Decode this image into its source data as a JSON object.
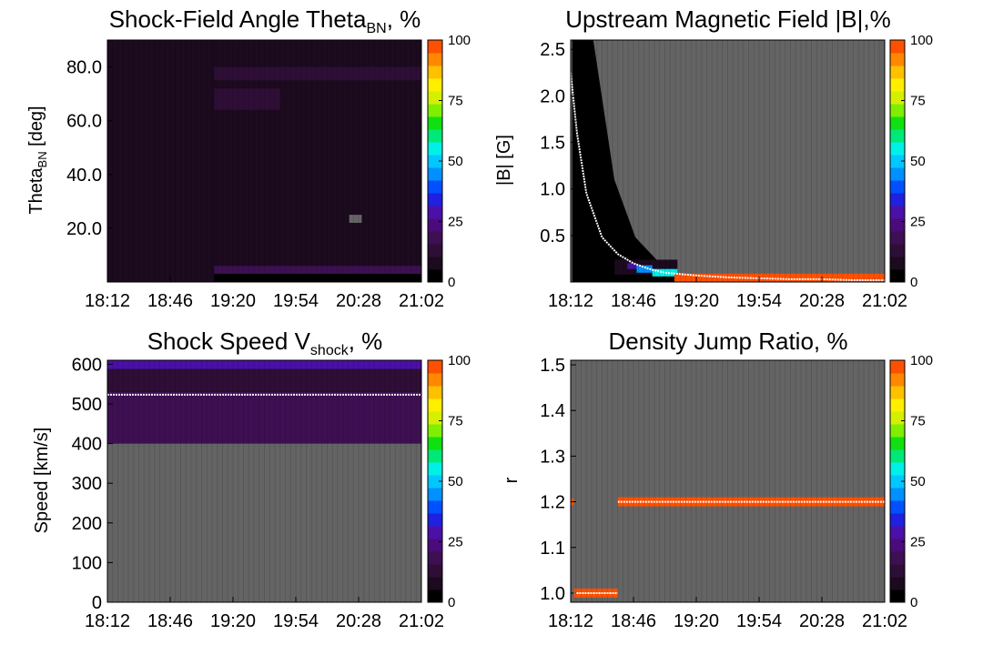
{
  "colors": {
    "background_fill": "#646464",
    "curve": "#ffffff",
    "colormap": [
      "#000000",
      "#1c0a1e",
      "#2e0e36",
      "#3e0f52",
      "#4b0b7a",
      "#4a10a8",
      "#2020e0",
      "#0050ff",
      "#0090ff",
      "#00c8ff",
      "#00f0e8",
      "#00e878",
      "#10e010",
      "#80ee00",
      "#d4f000",
      "#ffee00",
      "#ffc000",
      "#ff8800",
      "#ff5000"
    ]
  },
  "chart_data": [
    {
      "id": "theta",
      "type": "heatmap",
      "title": "Shock-Field Angle Theta",
      "title_sub": "BN",
      "title_suffix": ", %",
      "ylabel": "Theta",
      "ylabel_sub": "BN",
      "ylabel_suffix": " [deg]",
      "ylim": [
        0,
        90
      ],
      "yticks": [
        20,
        40,
        60,
        80
      ],
      "ytick_labels": [
        "20.0",
        "40.0",
        "60.0",
        "80.0"
      ],
      "xticks": [
        "18:12",
        "18:46",
        "19:20",
        "19:54",
        "20:28",
        "21:02"
      ],
      "colorbar": {
        "range": [
          0,
          100
        ],
        "ticks": [
          0,
          25,
          50,
          75,
          100
        ],
        "labels": [
          "0",
          "25",
          "50",
          "75",
          "100"
        ]
      },
      "series": [
        {
          "kind": "region",
          "x": [
            0,
            0.34
          ],
          "y": [
            0,
            90
          ],
          "value": 6
        },
        {
          "kind": "region",
          "x": [
            0.34,
            1
          ],
          "y": [
            0,
            90
          ],
          "value": 3
        },
        {
          "kind": "region",
          "x": [
            0.34,
            1
          ],
          "y": [
            75,
            80
          ],
          "value": 10
        },
        {
          "kind": "region",
          "x": [
            0.34,
            1
          ],
          "y": [
            60,
            72
          ],
          "value": 8
        },
        {
          "kind": "region",
          "x": [
            0.34,
            0.55
          ],
          "y": [
            64,
            72
          ],
          "value": 13
        },
        {
          "kind": "region",
          "x": [
            0.34,
            1
          ],
          "y": [
            20,
            24
          ],
          "value": 6
        },
        {
          "kind": "region",
          "x": [
            0.34,
            1
          ],
          "y": [
            8,
            12
          ],
          "value": 8
        },
        {
          "kind": "region",
          "x": [
            0.34,
            1
          ],
          "y": [
            3,
            6
          ],
          "value": 16
        },
        {
          "kind": "region",
          "x": [
            0.34,
            1
          ],
          "y": [
            0,
            3
          ],
          "value": 2
        },
        {
          "kind": "no_data",
          "x": [
            0.77,
            0.81
          ],
          "y": [
            22,
            25
          ]
        }
      ]
    },
    {
      "id": "bfield",
      "type": "heatmap",
      "title": "Upstream Magnetic Field |B|,%",
      "ylabel": "|B| [G]",
      "ylim": [
        0,
        2.6
      ],
      "yticks": [
        0.5,
        1.0,
        1.5,
        2.0,
        2.5
      ],
      "ytick_labels": [
        "0.5",
        "1.0",
        "1.5",
        "2.0",
        "2.5"
      ],
      "xticks": [
        "18:12",
        "18:46",
        "19:20",
        "19:54",
        "20:28",
        "21:02"
      ],
      "colorbar": {
        "range": [
          0,
          100
        ],
        "ticks": [
          0,
          25,
          50,
          75,
          100
        ],
        "labels": [
          "0",
          "25",
          "50",
          "75",
          "100"
        ]
      },
      "series": [
        {
          "kind": "no_data",
          "x": [
            0,
            1
          ],
          "y": [
            0,
            2.6
          ]
        },
        {
          "kind": "decay_band",
          "x": [
            0.005,
            0.34
          ],
          "y_upper": [
            2.6,
            2.6,
            1.1,
            0.48,
            0.24,
            0.1
          ],
          "value": 2
        },
        {
          "kind": "region",
          "x": [
            0.14,
            0.34
          ],
          "y": [
            0.08,
            0.24
          ],
          "value": 8
        },
        {
          "kind": "region",
          "x": [
            0.18,
            0.21
          ],
          "y": [
            0.14,
            0.2
          ],
          "value": 30
        },
        {
          "kind": "region",
          "x": [
            0.21,
            0.26
          ],
          "y": [
            0.1,
            0.18
          ],
          "value": 45
        },
        {
          "kind": "region",
          "x": [
            0.26,
            0.34
          ],
          "y": [
            0.06,
            0.14
          ],
          "value": 55
        },
        {
          "kind": "region",
          "x": [
            0.33,
            1
          ],
          "y": [
            0,
            0.09
          ],
          "value": 100
        },
        {
          "kind": "curve",
          "x": [
            0.0,
            0.02,
            0.05,
            0.1,
            0.15,
            0.2,
            0.25,
            0.3,
            0.4,
            0.5,
            0.6,
            0.7,
            0.8,
            0.9,
            1.0
          ],
          "y": [
            2.25,
            1.6,
            0.95,
            0.48,
            0.3,
            0.2,
            0.14,
            0.1,
            0.07,
            0.05,
            0.04,
            0.03,
            0.03,
            0.02,
            0.02
          ]
        }
      ]
    },
    {
      "id": "speed",
      "type": "heatmap",
      "title": "Shock Speed V",
      "title_sub": "shock",
      "title_suffix": ", %",
      "ylabel": "Speed [km/s]",
      "ylim": [
        0,
        610
      ],
      "yticks": [
        0,
        100,
        200,
        300,
        400,
        500,
        600
      ],
      "ytick_labels": [
        "0",
        "100",
        "200",
        "300",
        "400",
        "500",
        "600"
      ],
      "xticks": [
        "18:12",
        "18:46",
        "19:20",
        "19:54",
        "20:28",
        "21:02"
      ],
      "colorbar": {
        "range": [
          0,
          100
        ],
        "ticks": [
          0,
          25,
          50,
          75,
          100
        ],
        "labels": [
          "0",
          "25",
          "50",
          "75",
          "100"
        ]
      },
      "series": [
        {
          "kind": "no_data",
          "x": [
            0,
            1
          ],
          "y": [
            0,
            400
          ]
        },
        {
          "kind": "region",
          "x": [
            0,
            1
          ],
          "y": [
            400,
            530
          ],
          "value": 14
        },
        {
          "kind": "region",
          "x": [
            0,
            1
          ],
          "y": [
            530,
            588
          ],
          "value": 13
        },
        {
          "kind": "region",
          "x": [
            0,
            1
          ],
          "y": [
            588,
            610
          ],
          "value": 26
        },
        {
          "kind": "curve",
          "x": [
            0,
            1
          ],
          "y": [
            523,
            523
          ]
        }
      ]
    },
    {
      "id": "density",
      "type": "heatmap",
      "title": "Density Jump Ratio, %",
      "ylabel": "r",
      "ylim": [
        0.98,
        1.51
      ],
      "yticks": [
        1.0,
        1.1,
        1.2,
        1.3,
        1.4,
        1.5
      ],
      "ytick_labels": [
        "1.0",
        "1.1",
        "1.2",
        "1.3",
        "1.4",
        "1.5"
      ],
      "xticks": [
        "18:12",
        "18:46",
        "19:20",
        "19:54",
        "20:28",
        "21:02"
      ],
      "colorbar": {
        "range": [
          0,
          100
        ],
        "ticks": [
          0,
          25,
          50,
          75,
          100
        ],
        "labels": [
          "0",
          "25",
          "50",
          "75",
          "100"
        ]
      },
      "series": [
        {
          "kind": "no_data",
          "x": [
            0,
            1
          ],
          "y": [
            0.98,
            1.51
          ]
        },
        {
          "kind": "region",
          "x": [
            0,
            0.01
          ],
          "y": [
            1.193,
            1.207
          ],
          "value": 100
        },
        {
          "kind": "region",
          "x": [
            0.15,
            1
          ],
          "y": [
            1.19,
            1.21
          ],
          "value": 100
        },
        {
          "kind": "region",
          "x": [
            0.01,
            0.15
          ],
          "y": [
            0.99,
            1.01
          ],
          "value": 100
        },
        {
          "kind": "curve",
          "x": [
            0.15,
            1
          ],
          "y": [
            1.2,
            1.2
          ]
        },
        {
          "kind": "curve",
          "x": [
            0.01,
            0.15
          ],
          "y": [
            1.0,
            1.0
          ]
        }
      ]
    }
  ]
}
